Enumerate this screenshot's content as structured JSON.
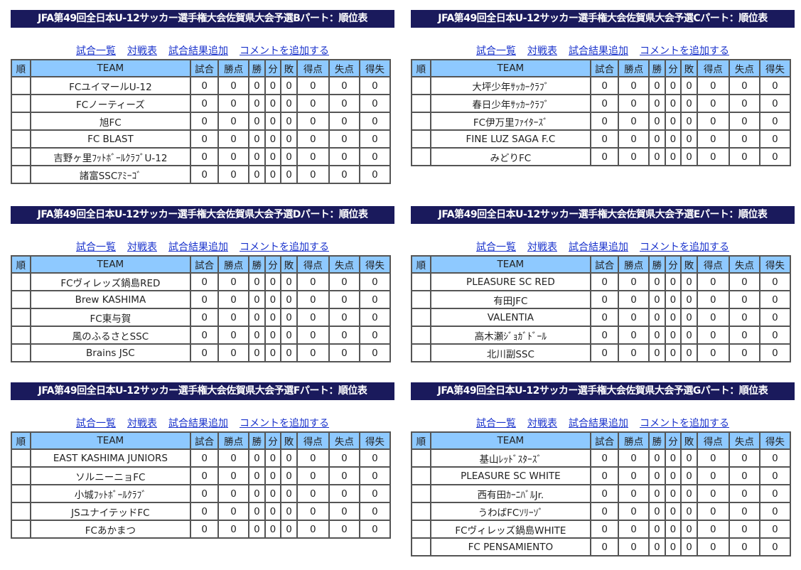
{
  "links": [
    "試合一覧",
    "対戦表",
    "試合結果追加",
    "コメントを追加する"
  ],
  "headers": [
    "順",
    "TEAM",
    "試合",
    "勝点",
    "勝",
    "分",
    "敗",
    "得点",
    "失点",
    "得失"
  ],
  "colors": {
    "title_bg": "#1a1a5c",
    "header_bg": "#8ec9ff",
    "link": "#1a33cc"
  },
  "groups": [
    {
      "title": "JFA第49回全日本U-12サッカー選手権大会佐賀県大会予選Bパート：順位表",
      "rows": [
        {
          "rank": "",
          "team": "FCユイマールU-12",
          "stats": [
            "0",
            "0",
            "0",
            "0",
            "0",
            "0",
            "0",
            "0"
          ]
        },
        {
          "rank": "",
          "team": "FCノーティーズ",
          "stats": [
            "0",
            "0",
            "0",
            "0",
            "0",
            "0",
            "0",
            "0"
          ]
        },
        {
          "rank": "",
          "team": "旭FC",
          "stats": [
            "0",
            "0",
            "0",
            "0",
            "0",
            "0",
            "0",
            "0"
          ]
        },
        {
          "rank": "",
          "team": "FC BLAST",
          "stats": [
            "0",
            "0",
            "0",
            "0",
            "0",
            "0",
            "0",
            "0"
          ]
        },
        {
          "rank": "",
          "team": "吉野ヶ里ﾌｯﾄﾎﾞｰﾙｸﾗﾌﾞU-12",
          "stats": [
            "0",
            "0",
            "0",
            "0",
            "0",
            "0",
            "0",
            "0"
          ]
        },
        {
          "rank": "",
          "team": "諸富SSCｱﾐｰｺﾞ",
          "stats": [
            "0",
            "0",
            "0",
            "0",
            "0",
            "0",
            "0",
            "0"
          ]
        }
      ]
    },
    {
      "title": "JFA第49回全日本U-12サッカー選手権大会佐賀県大会予選Cパート：順位表",
      "rows": [
        {
          "rank": "",
          "team": "大坪少年ｻｯｶｰｸﾗﾌﾞ",
          "stats": [
            "0",
            "0",
            "0",
            "0",
            "0",
            "0",
            "0",
            "0"
          ]
        },
        {
          "rank": "",
          "team": "春日少年ｻｯｶｰｸﾗﾌﾞ",
          "stats": [
            "0",
            "0",
            "0",
            "0",
            "0",
            "0",
            "0",
            "0"
          ]
        },
        {
          "rank": "",
          "team": "FC伊万里ﾌｧｲﾀｰｽﾞ",
          "stats": [
            "0",
            "0",
            "0",
            "0",
            "0",
            "0",
            "0",
            "0"
          ]
        },
        {
          "rank": "",
          "team": "FINE LUZ SAGA F.C",
          "stats": [
            "0",
            "0",
            "0",
            "0",
            "0",
            "0",
            "0",
            "0"
          ]
        },
        {
          "rank": "",
          "team": "みどりFC",
          "stats": [
            "0",
            "0",
            "0",
            "0",
            "0",
            "0",
            "0",
            "0"
          ]
        }
      ]
    },
    {
      "title": "JFA第49回全日本U-12サッカー選手権大会佐賀県大会予選Dパート：順位表",
      "rows": [
        {
          "rank": "",
          "team": "FCヴィレッズ鍋島RED",
          "stats": [
            "0",
            "0",
            "0",
            "0",
            "0",
            "0",
            "0",
            "0"
          ]
        },
        {
          "rank": "",
          "team": "Brew KASHIMA",
          "stats": [
            "0",
            "0",
            "0",
            "0",
            "0",
            "0",
            "0",
            "0"
          ]
        },
        {
          "rank": "",
          "team": "FC東与賀",
          "stats": [
            "0",
            "0",
            "0",
            "0",
            "0",
            "0",
            "0",
            "0"
          ]
        },
        {
          "rank": "",
          "team": "風のふるさとSSC",
          "stats": [
            "0",
            "0",
            "0",
            "0",
            "0",
            "0",
            "0",
            "0"
          ]
        },
        {
          "rank": "",
          "team": "Brains JSC",
          "stats": [
            "0",
            "0",
            "0",
            "0",
            "0",
            "0",
            "0",
            "0"
          ]
        }
      ]
    },
    {
      "title": "JFA第49回全日本U-12サッカー選手権大会佐賀県大会予選Eパート：順位表",
      "rows": [
        {
          "rank": "",
          "team": "PLEASURE SC RED",
          "stats": [
            "0",
            "0",
            "0",
            "0",
            "0",
            "0",
            "0",
            "0"
          ]
        },
        {
          "rank": "",
          "team": "有田JFC",
          "stats": [
            "0",
            "0",
            "0",
            "0",
            "0",
            "0",
            "0",
            "0"
          ]
        },
        {
          "rank": "",
          "team": "VALENTIA",
          "stats": [
            "0",
            "0",
            "0",
            "0",
            "0",
            "0",
            "0",
            "0"
          ]
        },
        {
          "rank": "",
          "team": "高木瀬ｼﾞｮｶﾞﾄﾞｰﾙ",
          "stats": [
            "0",
            "0",
            "0",
            "0",
            "0",
            "0",
            "0",
            "0"
          ]
        },
        {
          "rank": "",
          "team": "北川副SSC",
          "stats": [
            "0",
            "0",
            "0",
            "0",
            "0",
            "0",
            "0",
            "0"
          ]
        }
      ]
    },
    {
      "title": "JFA第49回全日本U-12サッカー選手権大会佐賀県大会予選Fパート：順位表",
      "rows": [
        {
          "rank": "",
          "team": "EAST KASHIMA JUNIORS",
          "stats": [
            "0",
            "0",
            "0",
            "0",
            "0",
            "0",
            "0",
            "0"
          ]
        },
        {
          "rank": "",
          "team": "ソルニーニョFC",
          "stats": [
            "0",
            "0",
            "0",
            "0",
            "0",
            "0",
            "0",
            "0"
          ]
        },
        {
          "rank": "",
          "team": "小城ﾌｯﾄﾎﾞｰﾙｸﾗﾌﾞ",
          "stats": [
            "0",
            "0",
            "0",
            "0",
            "0",
            "0",
            "0",
            "0"
          ]
        },
        {
          "rank": "",
          "team": "JSユナイテッドFC",
          "stats": [
            "0",
            "0",
            "0",
            "0",
            "0",
            "0",
            "0",
            "0"
          ]
        },
        {
          "rank": "",
          "team": "FCあかまつ",
          "stats": [
            "0",
            "0",
            "0",
            "0",
            "0",
            "0",
            "0",
            "0"
          ]
        }
      ]
    },
    {
      "title": "JFA第49回全日本U-12サッカー選手権大会佐賀県大会予選Gパート：順位表",
      "rows": [
        {
          "rank": "",
          "team": "基山ﾚｯﾄﾞｽﾀｰｽﾞ",
          "stats": [
            "0",
            "0",
            "0",
            "0",
            "0",
            "0",
            "0",
            "0"
          ]
        },
        {
          "rank": "",
          "team": "PLEASURE SC WHITE",
          "stats": [
            "0",
            "0",
            "0",
            "0",
            "0",
            "0",
            "0",
            "0"
          ]
        },
        {
          "rank": "",
          "team": "西有田ｶｰﾆﾊﾞﾙJr.",
          "stats": [
            "0",
            "0",
            "0",
            "0",
            "0",
            "0",
            "0",
            "0"
          ]
        },
        {
          "rank": "",
          "team": "うわばFCｿﾘｰｿﾞ",
          "stats": [
            "0",
            "0",
            "0",
            "0",
            "0",
            "0",
            "0",
            "0"
          ]
        },
        {
          "rank": "",
          "team": "FCヴィレッズ鍋島WHITE",
          "stats": [
            "0",
            "0",
            "0",
            "0",
            "0",
            "0",
            "0",
            "0"
          ]
        },
        {
          "rank": "",
          "team": "FC PENSAMIENTO",
          "stats": [
            "0",
            "0",
            "0",
            "0",
            "0",
            "0",
            "0",
            "0"
          ]
        }
      ]
    }
  ]
}
